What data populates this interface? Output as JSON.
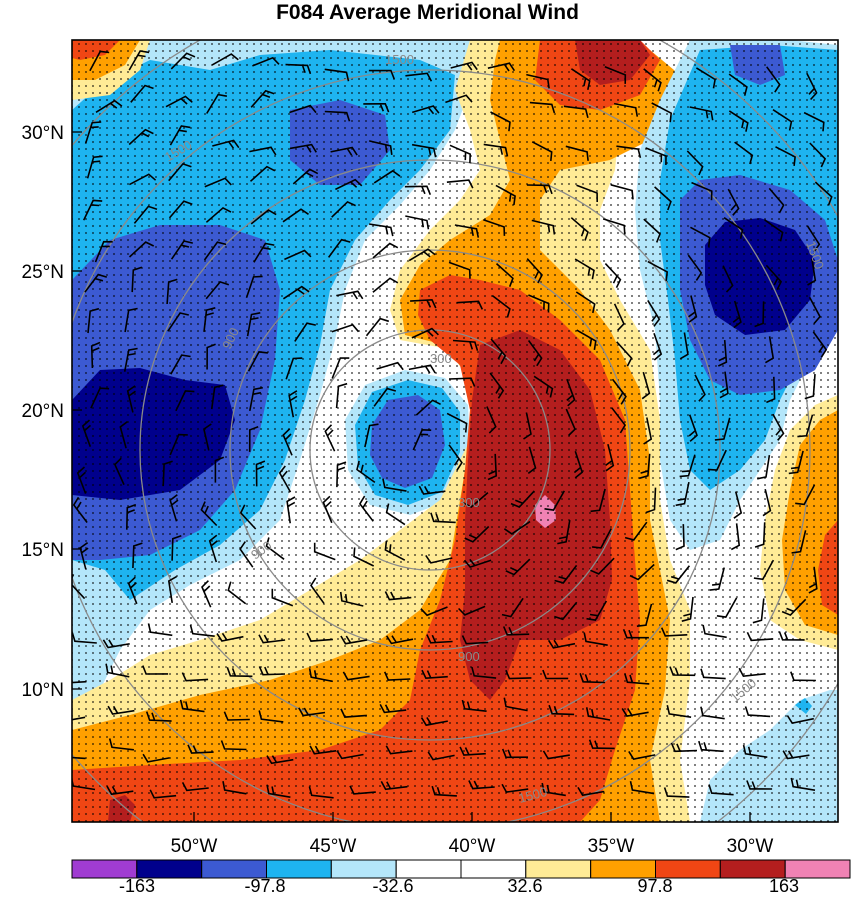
{
  "title": "F084 Average Meridional Wind",
  "map": {
    "lat_labels": [
      "30°N",
      "25°N",
      "20°N",
      "15°N",
      "10°N"
    ],
    "lon_labels": [
      "50°W",
      "45°W",
      "40°W",
      "35°W",
      "30°W"
    ],
    "contour_labels": [
      "1500",
      "1500",
      "900",
      "300",
      "300",
      "900",
      "900",
      "1500",
      "1500",
      "1500"
    ],
    "stippling": "dotted",
    "wind_barbs": true
  },
  "colorbar": {
    "labels": [
      "-163",
      "-97.8",
      "-32.6",
      "32.6",
      "97.8",
      "163"
    ],
    "colors": [
      "#a03cd2",
      "#00008c",
      "#3c5ad2",
      "#1eb4f0",
      "#b4e6fa",
      "#ffffff",
      "#ffffff",
      "#ffeb96",
      "#ffa000",
      "#f04614",
      "#b41e1e",
      "#f082b4"
    ]
  },
  "colors": {
    "dark_blue": "#0a0a8c",
    "mid_blue": "#3c5ad2",
    "blue": "#1eb4f0",
    "light_blue": "#b4e6fa",
    "pale_yellow": "#ffeb96",
    "orange": "#ffa000",
    "red_orange": "#f04614",
    "dark_red": "#b41e1e",
    "pink": "#f082b4",
    "contour_gray": "#8a8a8a"
  }
}
